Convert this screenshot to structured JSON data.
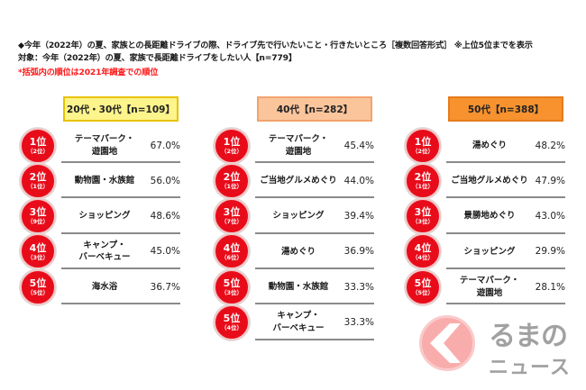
{
  "header": {
    "question": "◆今年（2022年）の夏、家族との長距離ドライブの際、ドライブ先で行いたいこと・行きたいところ［複数回答形式］ ※上位5位までを表示",
    "target": "対象：今年（2022年）の夏、家族で長距離ドライブをしたい人【n=779】",
    "note": "*括弧内の順位は2021年調査での順位"
  },
  "groups": [
    {
      "label": "20代・30代【n=109】",
      "fill": "#fdf48c",
      "border": "#e8c200",
      "items": [
        {
          "rank": "1位",
          "prev": "（2位）",
          "name": "テーマパーク・\n遊園地",
          "value": "67.0%"
        },
        {
          "rank": "2位",
          "prev": "（1位）",
          "name": "動物園・水族館",
          "value": "56.0%"
        },
        {
          "rank": "3位",
          "prev": "（9位）",
          "name": "ショッピング",
          "value": "48.6%"
        },
        {
          "rank": "4位",
          "prev": "（3位）",
          "name": "キャンプ・\nバーベキュー",
          "value": "45.0%"
        },
        {
          "rank": "5位",
          "prev": "（5位）",
          "name": "海水浴",
          "value": "36.7%"
        }
      ]
    },
    {
      "label": "40代【n=282】",
      "fill": "#fbc59c",
      "border": "#f2a36c",
      "items": [
        {
          "rank": "1位",
          "prev": "（2位）",
          "name": "テーマパーク・\n遊園地",
          "value": "45.4%"
        },
        {
          "rank": "2位",
          "prev": "（1位）",
          "name": "ご当地グルメめぐり",
          "value": "44.0%"
        },
        {
          "rank": "3位",
          "prev": "（7位）",
          "name": "ショッピング",
          "value": "39.4%"
        },
        {
          "rank": "4位",
          "prev": "（6位）",
          "name": "湯めぐり",
          "value": "36.9%"
        },
        {
          "rank": "5位",
          "prev": "（3位）",
          "name": "動物園・水族館",
          "value": "33.3%"
        },
        {
          "rank": "5位",
          "prev": "（4位）",
          "name": "キャンプ・\nバーベキュー",
          "value": "33.3%"
        }
      ]
    },
    {
      "label": "50代【n=388】",
      "fill": "#f7922f",
      "border": "#e57c1c",
      "items": [
        {
          "rank": "1位",
          "prev": "（2位）",
          "name": "湯めぐり",
          "value": "48.2%"
        },
        {
          "rank": "2位",
          "prev": "（1位）",
          "name": "ご当地グルメめぐり",
          "value": "47.9%"
        },
        {
          "rank": "3位",
          "prev": "（3位）",
          "name": "景勝地めぐり",
          "value": "43.0%"
        },
        {
          "rank": "4位",
          "prev": "（4位）",
          "name": "ショッピング",
          "value": "29.9%"
        },
        {
          "rank": "5位",
          "prev": "（5位）",
          "name": "テーマパーク・\n遊園地",
          "value": "28.1%"
        }
      ]
    }
  ],
  "colors": {
    "badge": "#e80c1a",
    "note": "#ff1a1a"
  },
  "watermark": {
    "icon": "kuruma-chevron-logo-icon",
    "line1": "るまの",
    "line2": "ニュース"
  }
}
